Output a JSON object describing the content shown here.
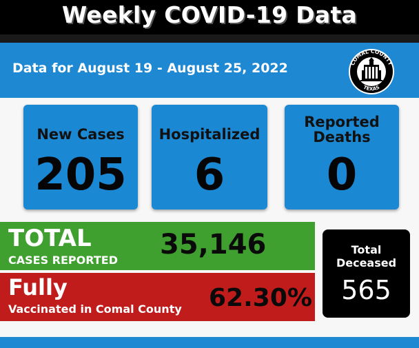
{
  "title": "Weekly COVID-19 Data",
  "date_range": "Data for August 19  - August 25, 2022",
  "seal": {
    "top_text": "COMAL COUNTY",
    "bottom_text": "TEXAS",
    "icon": "county-courthouse-seal"
  },
  "cards": [
    {
      "label": "New Cases",
      "value": "205"
    },
    {
      "label": "Hospitalized",
      "value": "6"
    },
    {
      "label_line1": "Reported",
      "label_line2": "Deaths",
      "value": "0"
    }
  ],
  "total": {
    "heading": "TOTAL",
    "subheading": "CASES REPORTED",
    "value": "35,146"
  },
  "vaccinated": {
    "heading": "Fully",
    "subheading": "Vaccinated in Comal County",
    "value": "62.30%"
  },
  "deceased": {
    "label_line1": "Total",
    "label_line2": "Deceased",
    "value": "565"
  },
  "colors": {
    "blue": "#1e88d2",
    "green": "#3fa02f",
    "red": "#c01c1c",
    "black": "#000000"
  }
}
